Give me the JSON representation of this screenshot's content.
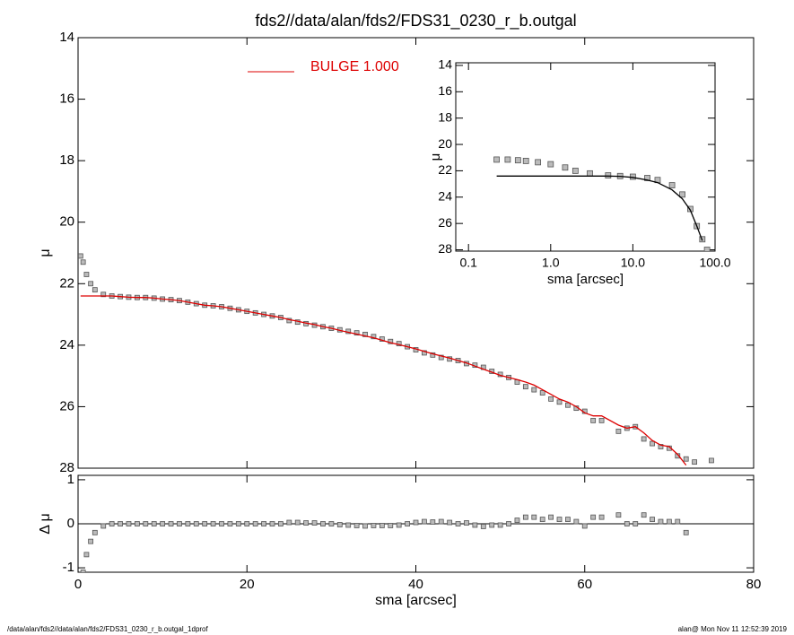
{
  "chart_data": [
    {
      "type": "line",
      "title": "fds2//data/alan/fds2/FDS31_0230_r_b.outgal",
      "ylabel": "μ",
      "x": [
        0.3,
        0.6,
        1,
        1.5,
        2,
        3,
        4,
        5,
        6,
        7,
        8,
        9,
        10,
        11,
        12,
        13,
        14,
        15,
        16,
        17,
        18,
        19,
        20,
        21,
        22,
        23,
        24,
        25,
        26,
        27,
        28,
        29,
        30,
        31,
        32,
        33,
        34,
        35,
        36,
        37,
        38,
        39,
        40,
        41,
        42,
        43,
        44,
        45,
        46,
        47,
        48,
        49,
        50,
        51,
        52,
        53,
        54,
        55,
        56,
        57,
        58,
        59,
        60,
        61,
        62,
        64,
        65,
        66,
        67,
        68,
        69,
        70,
        71,
        72,
        73,
        75
      ],
      "series": [
        {
          "style": "markers",
          "color": "#555555",
          "values": [
            21.1,
            21.3,
            21.7,
            22.0,
            22.2,
            22.35,
            22.4,
            22.42,
            22.44,
            22.45,
            22.45,
            22.47,
            22.5,
            22.52,
            22.55,
            22.6,
            22.65,
            22.7,
            22.72,
            22.75,
            22.8,
            22.85,
            22.9,
            22.95,
            23.0,
            23.05,
            23.1,
            23.2,
            23.25,
            23.3,
            23.35,
            23.4,
            23.45,
            23.5,
            23.55,
            23.6,
            23.65,
            23.72,
            23.8,
            23.88,
            23.95,
            24.05,
            24.15,
            24.25,
            24.32,
            24.4,
            24.45,
            24.5,
            24.6,
            24.65,
            24.72,
            24.85,
            24.95,
            25.05,
            25.2,
            25.35,
            25.45,
            25.55,
            25.75,
            25.85,
            25.95,
            26.05,
            26.15,
            26.45,
            26.45,
            26.8,
            26.7,
            26.65,
            27.05,
            27.2,
            27.3,
            27.35,
            27.6,
            27.7,
            27.8,
            27.75
          ]
        },
        {
          "name": "BULGE  1.000",
          "style": "line",
          "color": "#dd0000",
          "values": [
            22.4,
            22.4,
            22.4,
            22.4,
            22.4,
            22.4,
            22.4,
            22.42,
            22.44,
            22.45,
            22.45,
            22.47,
            22.5,
            22.52,
            22.55,
            22.6,
            22.65,
            22.7,
            22.72,
            22.75,
            22.8,
            22.85,
            22.9,
            22.95,
            23.0,
            23.05,
            23.1,
            23.17,
            23.22,
            23.28,
            23.33,
            23.4,
            23.45,
            23.52,
            23.58,
            23.64,
            23.7,
            23.76,
            23.84,
            23.92,
            23.98,
            24.05,
            24.12,
            24.2,
            24.28,
            24.35,
            24.42,
            24.5,
            24.58,
            24.68,
            24.78,
            24.88,
            24.98,
            25.05,
            25.12,
            25.2,
            25.3,
            25.45,
            25.6,
            25.75,
            25.85,
            26.0,
            26.2,
            26.3,
            26.3,
            26.6,
            26.7,
            26.65,
            26.85,
            27.1,
            27.25,
            27.3,
            27.55,
            27.9,
            null,
            null
          ]
        }
      ],
      "xlim": [
        0,
        80
      ],
      "xticks": [
        0,
        20,
        40,
        60,
        80
      ],
      "ylim": [
        28,
        14
      ],
      "yticks": [
        14,
        16,
        18,
        20,
        22,
        24,
        26,
        28
      ]
    },
    {
      "type": "scatter",
      "xlabel": "sma [arcsec]",
      "ylabel": "Δ μ",
      "reference_line": 0,
      "x": [
        0.3,
        0.6,
        1,
        1.5,
        2,
        3,
        4,
        5,
        6,
        7,
        8,
        9,
        10,
        11,
        12,
        13,
        14,
        15,
        16,
        17,
        18,
        19,
        20,
        21,
        22,
        23,
        24,
        25,
        26,
        27,
        28,
        29,
        30,
        31,
        32,
        33,
        34,
        35,
        36,
        37,
        38,
        39,
        40,
        41,
        42,
        43,
        44,
        45,
        46,
        47,
        48,
        49,
        50,
        51,
        52,
        53,
        54,
        55,
        56,
        57,
        58,
        59,
        60,
        61,
        62,
        64,
        65,
        66,
        67,
        68,
        69,
        70,
        71,
        72
      ],
      "series": [
        {
          "style": "markers",
          "color": "#555555",
          "values": [
            -1.3,
            -1.1,
            -0.7,
            -0.4,
            -0.2,
            -0.05,
            0,
            0,
            0,
            0,
            0,
            0,
            0,
            0,
            0,
            0,
            0,
            0,
            0,
            0,
            0,
            0,
            0,
            0,
            0,
            0,
            0,
            0.03,
            0.03,
            0.02,
            0.02,
            0,
            0,
            -0.02,
            -0.03,
            -0.04,
            -0.05,
            -0.04,
            -0.04,
            -0.04,
            -0.03,
            0,
            0.03,
            0.05,
            0.04,
            0.05,
            0.03,
            0,
            0.02,
            -0.03,
            -0.06,
            -0.03,
            -0.03,
            0,
            0.08,
            0.15,
            0.15,
            0.1,
            0.15,
            0.1,
            0.1,
            0.05,
            -0.05,
            0.15,
            0.15,
            0.2,
            0,
            0,
            0.2,
            0.1,
            0.05,
            0.05,
            0.05,
            -0.2
          ]
        }
      ],
      "xlim": [
        0,
        80
      ],
      "xticks": [
        0,
        20,
        40,
        60,
        80
      ],
      "ylim": [
        -1.1,
        1.1
      ],
      "yticks": [
        1,
        0,
        -1
      ]
    },
    {
      "type": "line",
      "xlabel": "sma [arcsec]",
      "ylabel": "μ",
      "xlog": true,
      "x": [
        0.22,
        0.3,
        0.4,
        0.5,
        0.7,
        1,
        1.5,
        2,
        3,
        5,
        7,
        10,
        15,
        20,
        30,
        40,
        50,
        60,
        70,
        80
      ],
      "series": [
        {
          "style": "markers",
          "color": "#555555",
          "values": [
            21.15,
            21.15,
            21.2,
            21.25,
            21.35,
            21.5,
            21.75,
            22.0,
            22.2,
            22.35,
            22.4,
            22.45,
            22.55,
            22.7,
            23.1,
            23.8,
            24.9,
            26.2,
            27.2,
            28.0
          ]
        },
        {
          "style": "line",
          "color": "#000000",
          "values": [
            22.4,
            22.4,
            22.4,
            22.4,
            22.4,
            22.4,
            22.4,
            22.4,
            22.4,
            22.4,
            22.42,
            22.5,
            22.7,
            22.9,
            23.45,
            24.12,
            24.98,
            26.2,
            27.3,
            null
          ]
        }
      ],
      "xlim": [
        0.07,
        100
      ],
      "xticks": [
        {
          "value": 0.1,
          "label": "0.1"
        },
        {
          "value": 1,
          "label": "1.0"
        },
        {
          "value": 10,
          "label": "10.0"
        },
        {
          "value": 100,
          "label": "100.0"
        }
      ],
      "ylim": [
        28.1,
        13.8
      ],
      "yticks": [
        14,
        16,
        18,
        20,
        22,
        24,
        26,
        28
      ]
    }
  ],
  "footer": {
    "left": "/data/alan/fds2//data/alan/fds2/FDS31_0230_r_b.outgal_1dprof",
    "right": "alan@  Mon Nov 11 12:52:39 2019"
  }
}
